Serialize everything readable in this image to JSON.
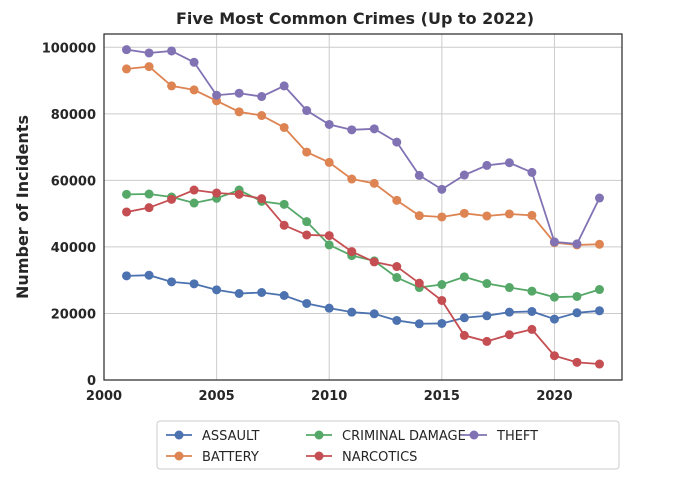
{
  "chart_data": {
    "type": "line",
    "title": "Five Most Common Crimes (Up to 2022)",
    "xlabel": "",
    "ylabel": "Number of Incidents",
    "xlim": [
      2000,
      2023
    ],
    "ylim": [
      0,
      104000
    ],
    "xticks": [
      2000,
      2005,
      2010,
      2015,
      2020
    ],
    "yticks": [
      0,
      20000,
      40000,
      60000,
      80000,
      100000
    ],
    "grid": true,
    "legend_placement": "bottom-center",
    "x": [
      2001,
      2002,
      2003,
      2004,
      2005,
      2006,
      2007,
      2008,
      2009,
      2010,
      2011,
      2012,
      2013,
      2014,
      2015,
      2016,
      2017,
      2018,
      2019,
      2020,
      2021,
      2022
    ],
    "series": [
      {
        "name": "ASSAULT",
        "color": "#4c72b0",
        "values": [
          31300,
          31500,
          29500,
          28900,
          27100,
          26000,
          26300,
          25400,
          23000,
          21600,
          20400,
          19900,
          17900,
          16900,
          17000,
          18700,
          19300,
          20400,
          20600,
          18300,
          20200,
          20800
        ]
      },
      {
        "name": "BATTERY",
        "color": "#dd8452",
        "values": [
          93500,
          94200,
          88400,
          87200,
          83900,
          80600,
          79500,
          75900,
          68500,
          65400,
          60400,
          59100,
          54000,
          49400,
          49000,
          50100,
          49300,
          49900,
          49500,
          41300,
          40600,
          40800
        ]
      },
      {
        "name": "CRIMINAL DAMAGE",
        "color": "#55a868",
        "values": [
          55800,
          55900,
          55000,
          53200,
          54600,
          57100,
          53700,
          52800,
          47600,
          40600,
          37400,
          35800,
          30800,
          27800,
          28700,
          31000,
          29000,
          27800,
          26700,
          24900,
          25100,
          27200
        ]
      },
      {
        "name": "NARCOTICS",
        "color": "#c44e52",
        "values": [
          50500,
          51800,
          54300,
          57100,
          56200,
          55800,
          54500,
          46500,
          43600,
          43400,
          38600,
          35500,
          34100,
          29100,
          23900,
          13400,
          11600,
          13600,
          15200,
          7300,
          5300,
          4800
        ]
      },
      {
        "name": "THEFT",
        "color": "#8172b3",
        "values": [
          99300,
          98300,
          98900,
          95500,
          85600,
          86200,
          85200,
          88400,
          81000,
          76800,
          75200,
          75500,
          71500,
          61500,
          57300,
          61600,
          64500,
          65300,
          62400,
          41500,
          40900,
          54700
        ]
      }
    ]
  }
}
